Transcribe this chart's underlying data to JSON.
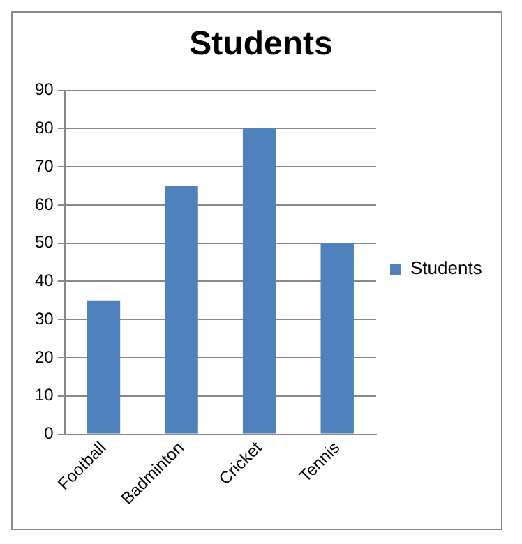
{
  "chart_data": {
    "type": "bar",
    "title": "Students",
    "categories": [
      "Football",
      "Badminton",
      "Cricket",
      "Tennis"
    ],
    "series": [
      {
        "name": "Students",
        "color": "#4f81bd",
        "values": [
          35,
          65,
          80,
          50
        ]
      }
    ],
    "ylim": [
      0,
      90
    ],
    "yticks": [
      0,
      10,
      20,
      30,
      40,
      50,
      60,
      70,
      80,
      90
    ],
    "grid": "y",
    "legend": "right"
  }
}
